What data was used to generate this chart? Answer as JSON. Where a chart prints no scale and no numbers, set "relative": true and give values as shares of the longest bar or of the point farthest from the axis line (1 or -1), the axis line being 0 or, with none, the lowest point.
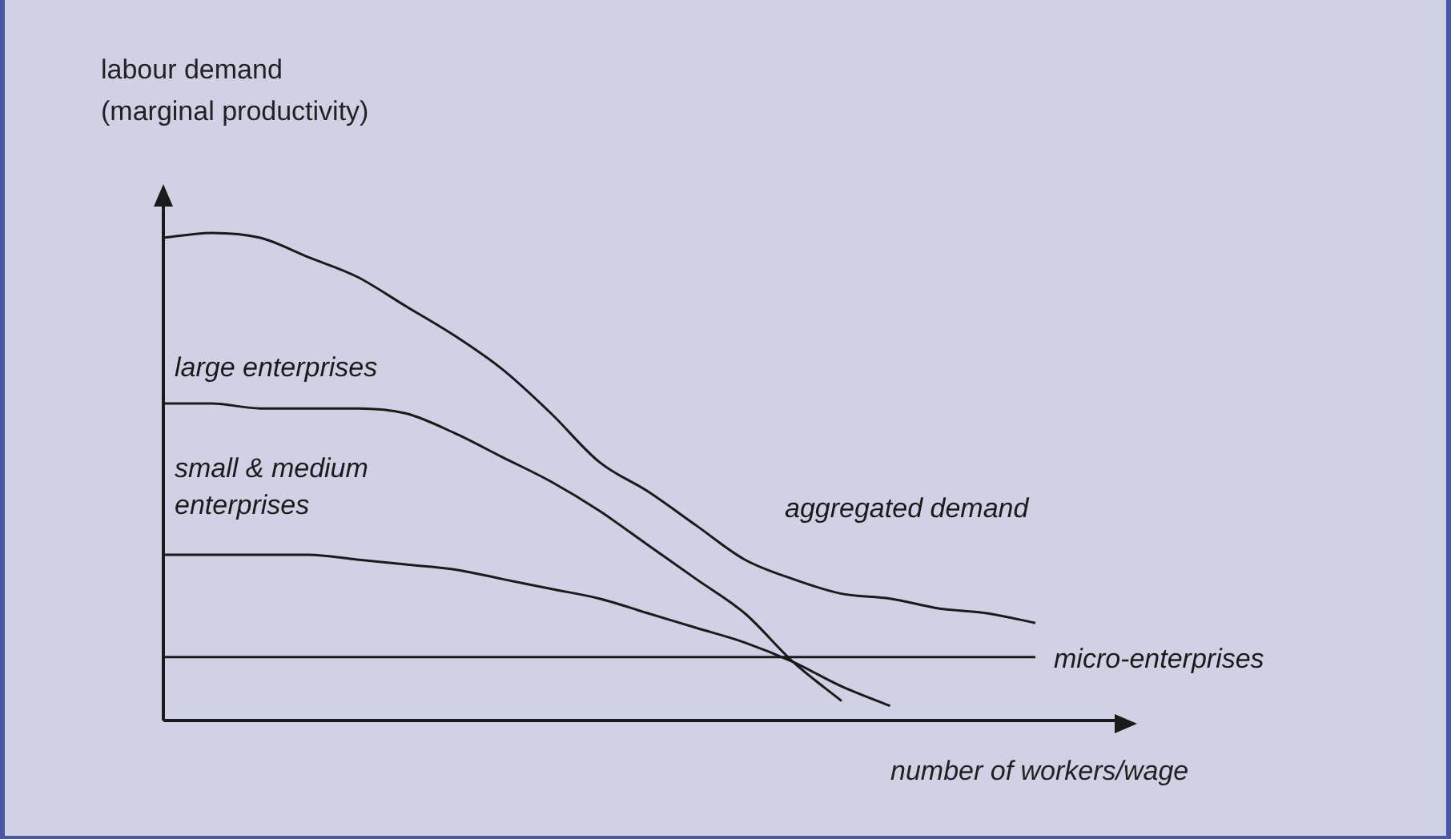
{
  "chart_data": {
    "type": "line",
    "relative": true,
    "xlabel": "number of workers/wage",
    "ylabel": "labour demand\n(marginal productivity)",
    "categories": [
      null,
      null,
      null,
      null,
      null,
      null,
      null,
      null,
      null,
      null,
      null,
      null,
      null,
      null,
      null,
      null,
      null,
      null,
      null,
      null,
      null
    ],
    "legend": false,
    "marker": "none",
    "line_style": "solid",
    "series": [
      {
        "name": "aggregated demand",
        "color": "#1a1a1a",
        "values": [
          0.99,
          1,
          0.99,
          0.95,
          0.91,
          0.85,
          0.79,
          0.72,
          0.63,
          0.53,
          0.47,
          0.4,
          0.33,
          0.29,
          0.26,
          0.25,
          0.23,
          0.22,
          0.2,
          null,
          null
        ]
      },
      {
        "name": "large enterprises",
        "color": "#1a1a1a",
        "values": [
          0.65,
          0.65,
          0.64,
          0.64,
          0.64,
          0.63,
          0.59,
          0.54,
          0.49,
          0.43,
          0.36,
          0.29,
          0.22,
          0.12,
          0.04,
          null,
          null,
          null,
          null,
          null,
          null
        ]
      },
      {
        "name": "small & medium enterprises",
        "color": "#1a1a1a",
        "values": [
          0.34,
          0.34,
          0.34,
          0.34,
          0.33,
          0.32,
          0.31,
          0.29,
          0.27,
          0.25,
          0.22,
          0.19,
          0.16,
          0.12,
          0.07,
          0.03,
          null,
          null,
          null,
          null,
          null
        ]
      },
      {
        "name": "micro-enterprises",
        "color": "#1a1a1a",
        "values": [
          0.13,
          0.13,
          0.13,
          0.13,
          0.13,
          0.13,
          0.13,
          0.13,
          0.13,
          0.13,
          0.13,
          0.13,
          0.13,
          0.13,
          0.13,
          0.13,
          0.13,
          0.13,
          0.13,
          null,
          null
        ]
      }
    ]
  }
}
